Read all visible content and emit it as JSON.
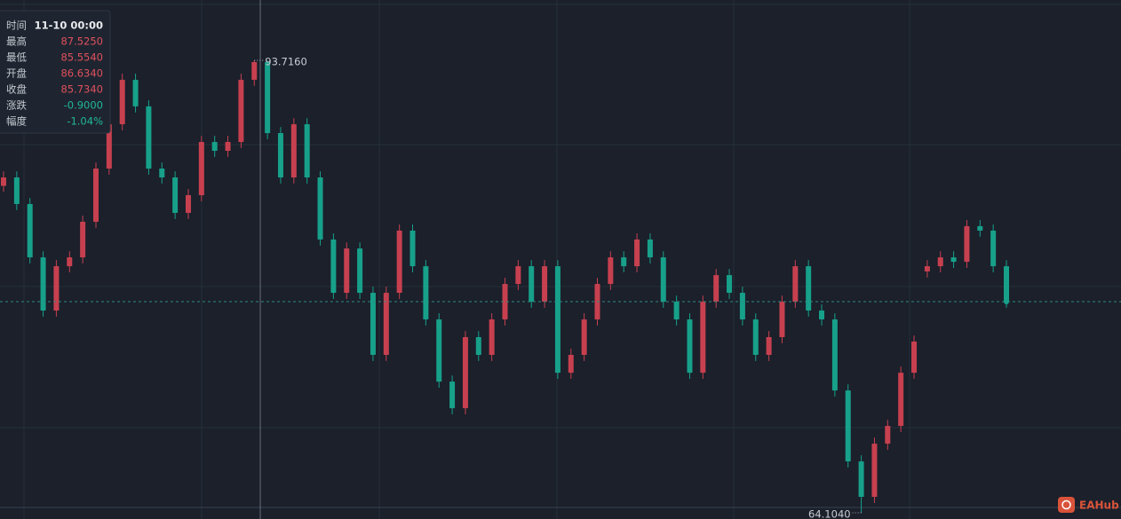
{
  "chart_data": {
    "type": "candlestick",
    "ylim": [
      63.7,
      97.66
    ],
    "up_color": "#c7404f",
    "down_color": "#17a08a",
    "open": [
      85.5,
      86.05,
      84.31,
      80.82,
      77.34,
      80.24,
      80.82,
      83.15,
      86.63,
      89.53,
      92.44,
      90.7,
      86.63,
      86.05,
      83.73,
      84.89,
      88.37,
      87.79,
      88.37,
      92.44,
      93.6,
      88.95,
      86.05,
      89.53,
      86.05,
      81.99,
      78.5,
      81.4,
      78.5,
      74.44,
      78.5,
      82.57,
      80.24,
      76.76,
      72.69,
      70.95,
      75.6,
      74.44,
      76.76,
      79.08,
      80.24,
      77.92,
      80.24,
      73.27,
      74.44,
      76.76,
      79.08,
      80.82,
      80.24,
      81.99,
      80.82,
      77.92,
      76.76,
      73.27,
      77.92,
      79.66,
      78.5,
      76.76,
      74.44,
      75.6,
      77.92,
      80.24,
      77.34,
      76.76,
      72.11,
      67.47,
      65.15,
      68.63,
      69.79,
      73.27,
      79.9,
      80.24,
      80.82,
      80.53,
      82.86,
      82.57,
      80.24
    ],
    "high": [
      86.45,
      86.45,
      84.71,
      81.22,
      80.64,
      81.22,
      83.55,
      87.03,
      89.93,
      92.84,
      92.84,
      91.1,
      87.03,
      86.45,
      85.29,
      88.77,
      88.77,
      88.77,
      92.84,
      93.716,
      93.7,
      89.35,
      89.93,
      89.93,
      86.45,
      82.39,
      81.8,
      81.8,
      78.9,
      78.9,
      82.97,
      82.97,
      80.64,
      77.16,
      73.09,
      76.0,
      76.0,
      77.16,
      79.48,
      80.64,
      80.64,
      80.64,
      80.64,
      74.84,
      77.16,
      79.48,
      81.22,
      81.22,
      82.39,
      82.39,
      81.22,
      78.32,
      77.16,
      78.32,
      80.06,
      80.06,
      78.9,
      77.16,
      76.0,
      78.32,
      80.64,
      80.64,
      77.74,
      77.16,
      72.51,
      67.87,
      69.03,
      70.19,
      73.67,
      75.71,
      80.64,
      81.22,
      81.22,
      83.26,
      83.26,
      82.97,
      80.64
    ],
    "low": [
      85.1,
      83.91,
      80.42,
      76.94,
      76.94,
      79.84,
      80.42,
      82.75,
      86.23,
      89.13,
      90.3,
      86.23,
      85.65,
      83.33,
      83.33,
      84.49,
      87.39,
      87.39,
      87.97,
      92.04,
      88.55,
      85.65,
      85.65,
      85.65,
      81.59,
      78.1,
      78.1,
      78.1,
      74.04,
      74.04,
      78.1,
      79.84,
      76.36,
      72.29,
      70.55,
      70.55,
      74.04,
      74.04,
      76.36,
      78.68,
      77.52,
      77.52,
      72.87,
      72.87,
      74.04,
      76.36,
      78.68,
      79.84,
      79.84,
      80.42,
      77.52,
      76.36,
      72.87,
      72.87,
      77.52,
      78.1,
      76.36,
      74.04,
      74.04,
      75.2,
      77.52,
      76.94,
      76.36,
      71.71,
      67.07,
      64.104,
      64.75,
      68.23,
      69.39,
      72.87,
      79.5,
      79.84,
      80.13,
      80.13,
      82.17,
      79.84,
      77.52
    ],
    "close": [
      86.05,
      84.31,
      80.82,
      77.34,
      80.24,
      80.82,
      83.15,
      86.63,
      89.53,
      92.44,
      90.7,
      86.63,
      86.05,
      83.73,
      84.89,
      88.37,
      87.79,
      88.37,
      92.44,
      93.6,
      88.95,
      86.05,
      89.53,
      86.05,
      81.99,
      78.5,
      81.4,
      78.5,
      74.44,
      78.5,
      82.57,
      80.24,
      76.76,
      72.69,
      70.95,
      75.6,
      74.44,
      76.76,
      79.08,
      80.24,
      77.92,
      80.24,
      73.27,
      74.44,
      76.76,
      79.08,
      80.82,
      80.24,
      81.99,
      80.82,
      77.92,
      76.76,
      73.27,
      77.92,
      79.66,
      78.5,
      76.76,
      74.44,
      75.6,
      77.92,
      80.24,
      77.34,
      76.76,
      72.11,
      67.47,
      65.15,
      68.63,
      69.79,
      73.27,
      75.31,
      80.24,
      80.82,
      80.53,
      82.86,
      82.57,
      80.24,
      77.92
    ],
    "annotations": [
      {
        "value": 93.716,
        "label": "93.7160",
        "of": "high"
      },
      {
        "value": 64.104,
        "label": "64.1040",
        "of": "low"
      }
    ],
    "tooltip": [
      [
        "时间",
        "11-10 00:00"
      ],
      [
        "最高",
        "87.5250"
      ],
      [
        "最低",
        "85.5540"
      ],
      [
        "开盘",
        "86.6340"
      ],
      [
        "收盘",
        "85.7340"
      ],
      [
        "涨跌",
        "-0.9000"
      ],
      [
        "幅度",
        "-1.04%"
      ]
    ],
    "watermark": "EAHub"
  }
}
